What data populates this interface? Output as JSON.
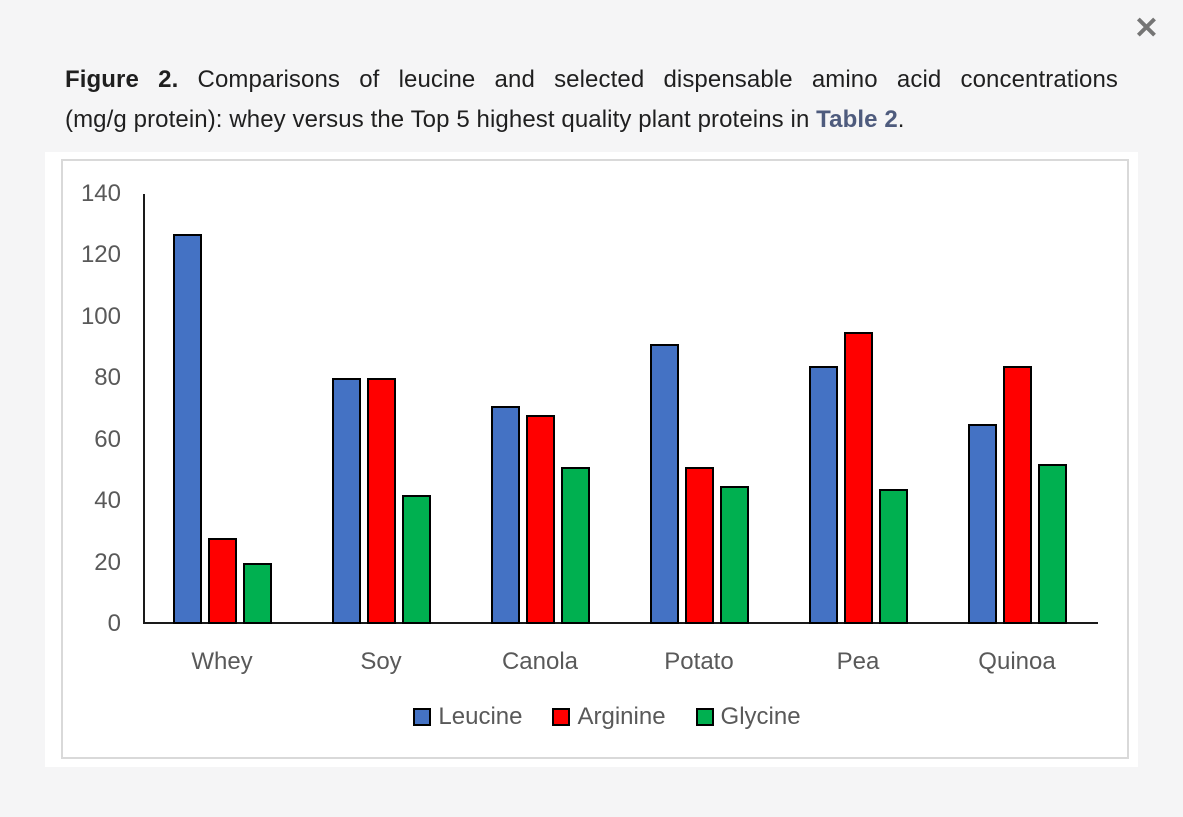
{
  "overlay": {
    "close_glyph": "✕"
  },
  "caption": {
    "figure_label": "Figure 2.",
    "line1_rest": " Comparisons of leucine and selected dispensable amino acid concentrations",
    "line2_pre": "(mg/g protein): whey versus the Top 5 highest quality plant proteins in ",
    "link_text": "Table 2",
    "line2_suffix": "."
  },
  "chart_data": {
    "type": "bar",
    "categories": [
      "Whey",
      "Soy",
      "Canola",
      "Potato",
      "Pea",
      "Quinoa"
    ],
    "series": [
      {
        "name": "Leucine",
        "color": "#4472C4",
        "values": [
          127,
          80,
          71,
          91,
          84,
          65
        ]
      },
      {
        "name": "Arginine",
        "color": "#FF0000",
        "values": [
          28,
          80,
          68,
          51,
          95,
          84
        ]
      },
      {
        "name": "Glycine",
        "color": "#00B050",
        "values": [
          20,
          42,
          51,
          45,
          44,
          52
        ]
      }
    ],
    "ylim": [
      0,
      140
    ],
    "yticks": [
      0,
      20,
      40,
      60,
      80,
      100,
      120,
      140
    ],
    "grid": false,
    "legend_position": "bottom",
    "bar_border_color": "#000000",
    "axis_color": "#1a1a1a",
    "tick_label_color": "#595959"
  }
}
